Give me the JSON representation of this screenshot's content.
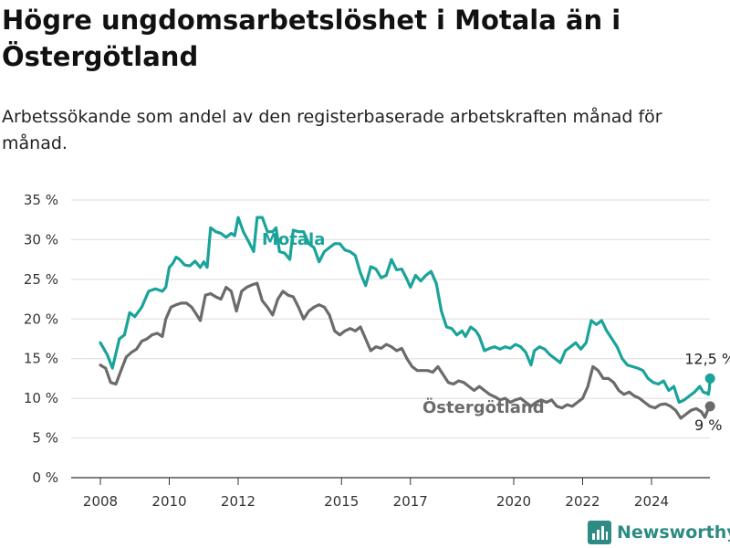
{
  "title": "Högre ungdomsarbetslöshet i Motala än i Östergötland",
  "subtitle": "Arbetssökande som andel av den registerbaserade arbetskraften månad för månad.",
  "brand": "Newsworthy",
  "colors": {
    "motala": "#1aa39a",
    "ostergotland": "#6b6b6b",
    "grid": "#dcdcdc",
    "axis": "#333333",
    "brand": "#2e8b83"
  },
  "chart_data": {
    "type": "line",
    "xlim": [
      2007.6,
      2025.7
    ],
    "ylim": [
      0,
      35
    ],
    "y_ticks": [
      0,
      5,
      10,
      15,
      20,
      25,
      30,
      35
    ],
    "y_tick_labels": [
      "0 %",
      "5 %",
      "10 %",
      "15 %",
      "20 %",
      "25 %",
      "30 %",
      "35 %"
    ],
    "x_ticks": [
      2008,
      2010,
      2012,
      2015,
      2017,
      2020,
      2022,
      2024
    ],
    "x_tick_labels": [
      "2008",
      "2010",
      "2012",
      "2015",
      "2017",
      "2020",
      "2022",
      "2024"
    ],
    "grid": true,
    "series": [
      {
        "name": "Motala",
        "end_label": "12,5 %",
        "points": [
          [
            2008.0,
            17.0
          ],
          [
            2008.2,
            15.5
          ],
          [
            2008.35,
            13.8
          ],
          [
            2008.55,
            17.5
          ],
          [
            2008.7,
            18.0
          ],
          [
            2008.85,
            20.8
          ],
          [
            2009.0,
            20.3
          ],
          [
            2009.2,
            21.5
          ],
          [
            2009.4,
            23.5
          ],
          [
            2009.6,
            23.8
          ],
          [
            2009.8,
            23.5
          ],
          [
            2009.9,
            24.0
          ],
          [
            2010.0,
            26.5
          ],
          [
            2010.1,
            27.0
          ],
          [
            2010.2,
            27.8
          ],
          [
            2010.3,
            27.5
          ],
          [
            2010.45,
            26.8
          ],
          [
            2010.6,
            26.7
          ],
          [
            2010.75,
            27.3
          ],
          [
            2010.9,
            26.5
          ],
          [
            2011.0,
            27.2
          ],
          [
            2011.1,
            26.5
          ],
          [
            2011.2,
            31.5
          ],
          [
            2011.35,
            31.0
          ],
          [
            2011.5,
            30.8
          ],
          [
            2011.65,
            30.3
          ],
          [
            2011.8,
            30.8
          ],
          [
            2011.9,
            30.5
          ],
          [
            2012.0,
            32.8
          ],
          [
            2012.15,
            31.0
          ],
          [
            2012.3,
            29.8
          ],
          [
            2012.45,
            28.5
          ],
          [
            2012.55,
            32.8
          ],
          [
            2012.7,
            32.8
          ],
          [
            2012.85,
            31.0
          ],
          [
            2013.0,
            31.0
          ],
          [
            2013.1,
            31.5
          ],
          [
            2013.2,
            28.5
          ],
          [
            2013.35,
            28.3
          ],
          [
            2013.5,
            27.5
          ],
          [
            2013.6,
            31.2
          ],
          [
            2013.75,
            31.0
          ],
          [
            2013.9,
            31.0
          ],
          [
            2014.05,
            29.5
          ],
          [
            2014.2,
            29.0
          ],
          [
            2014.35,
            27.2
          ],
          [
            2014.5,
            28.5
          ],
          [
            2014.65,
            29.0
          ],
          [
            2014.8,
            29.5
          ],
          [
            2014.95,
            29.5
          ],
          [
            2015.1,
            28.7
          ],
          [
            2015.25,
            28.5
          ],
          [
            2015.4,
            28.0
          ],
          [
            2015.55,
            25.8
          ],
          [
            2015.7,
            24.2
          ],
          [
            2015.85,
            26.6
          ],
          [
            2016.0,
            26.3
          ],
          [
            2016.15,
            25.2
          ],
          [
            2016.3,
            25.5
          ],
          [
            2016.45,
            27.5
          ],
          [
            2016.6,
            26.2
          ],
          [
            2016.75,
            26.3
          ],
          [
            2016.9,
            25.0
          ],
          [
            2017.0,
            24.0
          ],
          [
            2017.15,
            25.5
          ],
          [
            2017.3,
            24.8
          ],
          [
            2017.45,
            25.5
          ],
          [
            2017.6,
            26.0
          ],
          [
            2017.75,
            24.5
          ],
          [
            2017.9,
            21.0
          ],
          [
            2018.05,
            19.0
          ],
          [
            2018.2,
            18.8
          ],
          [
            2018.35,
            18.0
          ],
          [
            2018.5,
            18.5
          ],
          [
            2018.6,
            17.8
          ],
          [
            2018.75,
            19.0
          ],
          [
            2018.9,
            18.5
          ],
          [
            2019.0,
            17.8
          ],
          [
            2019.15,
            16.0
          ],
          [
            2019.3,
            16.3
          ],
          [
            2019.45,
            16.5
          ],
          [
            2019.6,
            16.2
          ],
          [
            2019.75,
            16.5
          ],
          [
            2019.9,
            16.3
          ],
          [
            2020.05,
            16.8
          ],
          [
            2020.2,
            16.5
          ],
          [
            2020.35,
            15.8
          ],
          [
            2020.5,
            14.2
          ],
          [
            2020.6,
            16.0
          ],
          [
            2020.75,
            16.5
          ],
          [
            2020.9,
            16.2
          ],
          [
            2021.05,
            15.5
          ],
          [
            2021.2,
            15.0
          ],
          [
            2021.35,
            14.5
          ],
          [
            2021.5,
            16.0
          ],
          [
            2021.65,
            16.5
          ],
          [
            2021.8,
            17.0
          ],
          [
            2021.95,
            16.2
          ],
          [
            2022.1,
            17.0
          ],
          [
            2022.25,
            19.8
          ],
          [
            2022.4,
            19.3
          ],
          [
            2022.55,
            19.8
          ],
          [
            2022.7,
            18.5
          ],
          [
            2022.85,
            17.5
          ],
          [
            2023.0,
            16.5
          ],
          [
            2023.15,
            15.0
          ],
          [
            2023.3,
            14.2
          ],
          [
            2023.45,
            14.0
          ],
          [
            2023.6,
            13.8
          ],
          [
            2023.75,
            13.5
          ],
          [
            2023.9,
            12.5
          ],
          [
            2024.05,
            12.0
          ],
          [
            2024.2,
            11.8
          ],
          [
            2024.35,
            12.2
          ],
          [
            2024.5,
            11.0
          ],
          [
            2024.65,
            11.5
          ],
          [
            2024.8,
            9.5
          ],
          [
            2024.95,
            9.8
          ],
          [
            2025.1,
            10.3
          ],
          [
            2025.25,
            10.8
          ],
          [
            2025.4,
            11.5
          ],
          [
            2025.5,
            10.8
          ],
          [
            2025.55,
            10.7
          ],
          [
            2025.6,
            10.7
          ],
          [
            2025.65,
            10.5
          ],
          [
            2025.68,
            11.2
          ],
          [
            2025.7,
            12.5
          ]
        ]
      },
      {
        "name": "Östergötland",
        "end_label": "9 %",
        "points": [
          [
            2008.0,
            14.2
          ],
          [
            2008.15,
            13.8
          ],
          [
            2008.3,
            12.0
          ],
          [
            2008.45,
            11.8
          ],
          [
            2008.6,
            13.5
          ],
          [
            2008.75,
            15.2
          ],
          [
            2008.9,
            15.8
          ],
          [
            2009.05,
            16.2
          ],
          [
            2009.2,
            17.2
          ],
          [
            2009.35,
            17.5
          ],
          [
            2009.5,
            18.0
          ],
          [
            2009.65,
            18.2
          ],
          [
            2009.8,
            17.8
          ],
          [
            2009.9,
            20.0
          ],
          [
            2010.05,
            21.5
          ],
          [
            2010.2,
            21.8
          ],
          [
            2010.35,
            22.0
          ],
          [
            2010.5,
            22.0
          ],
          [
            2010.65,
            21.5
          ],
          [
            2010.8,
            20.5
          ],
          [
            2010.9,
            19.8
          ],
          [
            2011.05,
            23.0
          ],
          [
            2011.2,
            23.2
          ],
          [
            2011.35,
            22.8
          ],
          [
            2011.5,
            22.5
          ],
          [
            2011.65,
            24.0
          ],
          [
            2011.8,
            23.5
          ],
          [
            2011.95,
            21.0
          ],
          [
            2012.1,
            23.5
          ],
          [
            2012.25,
            24.0
          ],
          [
            2012.4,
            24.3
          ],
          [
            2012.55,
            24.5
          ],
          [
            2012.7,
            22.3
          ],
          [
            2012.85,
            21.5
          ],
          [
            2013.0,
            20.5
          ],
          [
            2013.15,
            22.5
          ],
          [
            2013.3,
            23.5
          ],
          [
            2013.45,
            23.0
          ],
          [
            2013.6,
            22.8
          ],
          [
            2013.75,
            21.5
          ],
          [
            2013.9,
            20.0
          ],
          [
            2014.05,
            21.0
          ],
          [
            2014.2,
            21.5
          ],
          [
            2014.35,
            21.8
          ],
          [
            2014.5,
            21.5
          ],
          [
            2014.65,
            20.5
          ],
          [
            2014.8,
            18.5
          ],
          [
            2014.95,
            18.0
          ],
          [
            2015.1,
            18.5
          ],
          [
            2015.25,
            18.8
          ],
          [
            2015.4,
            18.5
          ],
          [
            2015.55,
            19.0
          ],
          [
            2015.7,
            17.5
          ],
          [
            2015.85,
            16.0
          ],
          [
            2016.0,
            16.5
          ],
          [
            2016.15,
            16.3
          ],
          [
            2016.3,
            16.8
          ],
          [
            2016.45,
            16.5
          ],
          [
            2016.6,
            16.0
          ],
          [
            2016.75,
            16.3
          ],
          [
            2016.9,
            15.0
          ],
          [
            2017.05,
            14.0
          ],
          [
            2017.2,
            13.5
          ],
          [
            2017.35,
            13.5
          ],
          [
            2017.5,
            13.5
          ],
          [
            2017.65,
            13.3
          ],
          [
            2017.8,
            14.0
          ],
          [
            2017.95,
            13.0
          ],
          [
            2018.1,
            12.0
          ],
          [
            2018.25,
            11.8
          ],
          [
            2018.4,
            12.2
          ],
          [
            2018.55,
            12.0
          ],
          [
            2018.7,
            11.5
          ],
          [
            2018.85,
            11.0
          ],
          [
            2019.0,
            11.5
          ],
          [
            2019.15,
            11.0
          ],
          [
            2019.3,
            10.5
          ],
          [
            2019.45,
            10.2
          ],
          [
            2019.6,
            9.8
          ],
          [
            2019.75,
            10.0
          ],
          [
            2019.9,
            9.5
          ],
          [
            2020.05,
            9.8
          ],
          [
            2020.2,
            10.0
          ],
          [
            2020.35,
            9.5
          ],
          [
            2020.5,
            9.0
          ],
          [
            2020.65,
            9.5
          ],
          [
            2020.8,
            9.8
          ],
          [
            2020.95,
            9.5
          ],
          [
            2021.1,
            9.8
          ],
          [
            2021.25,
            9.0
          ],
          [
            2021.4,
            8.8
          ],
          [
            2021.55,
            9.2
          ],
          [
            2021.7,
            9.0
          ],
          [
            2021.85,
            9.5
          ],
          [
            2022.0,
            10.0
          ],
          [
            2022.15,
            11.5
          ],
          [
            2022.3,
            14.0
          ],
          [
            2022.45,
            13.5
          ],
          [
            2022.6,
            12.5
          ],
          [
            2022.75,
            12.5
          ],
          [
            2022.9,
            12.0
          ],
          [
            2023.05,
            11.0
          ],
          [
            2023.2,
            10.5
          ],
          [
            2023.35,
            10.8
          ],
          [
            2023.5,
            10.3
          ],
          [
            2023.65,
            10.0
          ],
          [
            2023.8,
            9.5
          ],
          [
            2023.95,
            9.0
          ],
          [
            2024.1,
            8.8
          ],
          [
            2024.25,
            9.2
          ],
          [
            2024.4,
            9.3
          ],
          [
            2024.55,
            9.0
          ],
          [
            2024.7,
            8.5
          ],
          [
            2024.85,
            7.5
          ],
          [
            2025.0,
            8.0
          ],
          [
            2025.15,
            8.5
          ],
          [
            2025.3,
            8.7
          ],
          [
            2025.45,
            8.3
          ],
          [
            2025.55,
            7.6
          ],
          [
            2025.62,
            8.4
          ],
          [
            2025.7,
            9.0
          ]
        ]
      }
    ]
  }
}
